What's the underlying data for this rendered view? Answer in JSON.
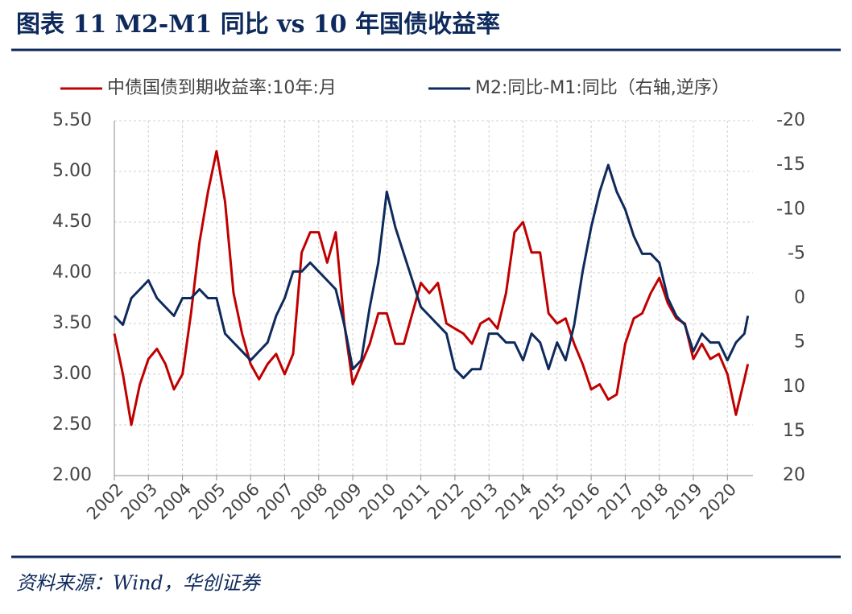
{
  "header": {
    "title": "图表 11    M2-M1 同比 vs 10 年国债收益率"
  },
  "chart_data": {
    "type": "line",
    "x": [
      2002,
      2002.25,
      2002.5,
      2002.75,
      2003,
      2003.25,
      2003.5,
      2003.75,
      2004,
      2004.25,
      2004.5,
      2004.75,
      2005,
      2005.25,
      2005.5,
      2005.75,
      2006,
      2006.25,
      2006.5,
      2006.75,
      2007,
      2007.25,
      2007.5,
      2007.75,
      2008,
      2008.25,
      2008.5,
      2008.75,
      2009,
      2009.25,
      2009.5,
      2009.75,
      2010,
      2010.25,
      2010.5,
      2010.75,
      2011,
      2011.25,
      2011.5,
      2011.75,
      2012,
      2012.25,
      2012.5,
      2012.75,
      2013,
      2013.25,
      2013.5,
      2013.75,
      2014,
      2014.25,
      2014.5,
      2014.75,
      2015,
      2015.25,
      2015.5,
      2015.75,
      2016,
      2016.25,
      2016.5,
      2016.75,
      2017,
      2017.25,
      2017.5,
      2017.75,
      2018,
      2018.25,
      2018.5,
      2018.75,
      2019,
      2019.25,
      2019.5,
      2019.75,
      2020,
      2020.25,
      2020.5,
      2020.6
    ],
    "series": [
      {
        "name": "中债国债到期收益率:10年:月",
        "color": "#c00000",
        "values": [
          3.4,
          3.0,
          2.5,
          2.9,
          3.15,
          3.25,
          3.1,
          2.85,
          3.0,
          3.6,
          4.3,
          4.8,
          5.2,
          4.7,
          3.8,
          3.4,
          3.1,
          2.95,
          3.1,
          3.2,
          3.0,
          3.2,
          4.2,
          4.4,
          4.4,
          4.1,
          4.4,
          3.5,
          2.9,
          3.1,
          3.3,
          3.6,
          3.6,
          3.3,
          3.3,
          3.6,
          3.9,
          3.8,
          3.9,
          3.5,
          3.45,
          3.4,
          3.3,
          3.5,
          3.55,
          3.45,
          3.8,
          4.4,
          4.5,
          4.2,
          4.2,
          3.6,
          3.5,
          3.55,
          3.3,
          3.1,
          2.85,
          2.9,
          2.75,
          2.8,
          3.3,
          3.55,
          3.6,
          3.8,
          3.95,
          3.7,
          3.55,
          3.5,
          3.15,
          3.3,
          3.15,
          3.2,
          3.0,
          2.6,
          2.95,
          3.1
        ]
      },
      {
        "name": "M2:同比-M1:同比（右轴,逆序）",
        "color": "#0e2a5c",
        "axis": "y2",
        "values": [
          2,
          3,
          0,
          -1,
          -2,
          0,
          1,
          2,
          0,
          0,
          -1,
          0,
          0,
          4,
          5,
          6,
          7,
          6,
          5,
          2,
          0,
          -3,
          -3,
          -4,
          -3,
          -2,
          -1,
          3,
          8,
          7,
          1,
          -4,
          -12,
          -8,
          -5,
          -2,
          1,
          2,
          3,
          4,
          8,
          9,
          8,
          8,
          4,
          4,
          5,
          5,
          7,
          4,
          5,
          8,
          5,
          7,
          3,
          -3,
          -8,
          -12,
          -15,
          -12,
          -10,
          -7,
          -5,
          -5,
          -4,
          0,
          2,
          3,
          6,
          4,
          5,
          5,
          7,
          5,
          4,
          2
        ]
      }
    ],
    "xlim": [
      2002,
      2020.75
    ],
    "xticks": [
      2002,
      2003,
      2004,
      2005,
      2006,
      2007,
      2008,
      2009,
      2010,
      2011,
      2012,
      2013,
      2014,
      2015,
      2016,
      2017,
      2018,
      2019,
      2020
    ],
    "ylim": [
      2,
      5.5
    ],
    "yticks": [
      {
        "value": 2,
        "label": "2.00"
      },
      {
        "value": 2.5,
        "label": "2.50"
      },
      {
        "value": 3,
        "label": "3.00"
      },
      {
        "value": 3.5,
        "label": "3.50"
      },
      {
        "value": 4,
        "label": "4.00"
      },
      {
        "value": 4.5,
        "label": "4.50"
      },
      {
        "value": 5,
        "label": "5.00"
      },
      {
        "value": 5.5,
        "label": "5.50"
      }
    ],
    "y2lim": [
      20,
      -20
    ],
    "y2ticks": [
      -20,
      -15,
      -10,
      -5,
      0,
      5,
      10,
      15,
      20
    ],
    "grid": true
  },
  "footer": {
    "source": "资料来源：Wind，华创证券"
  }
}
